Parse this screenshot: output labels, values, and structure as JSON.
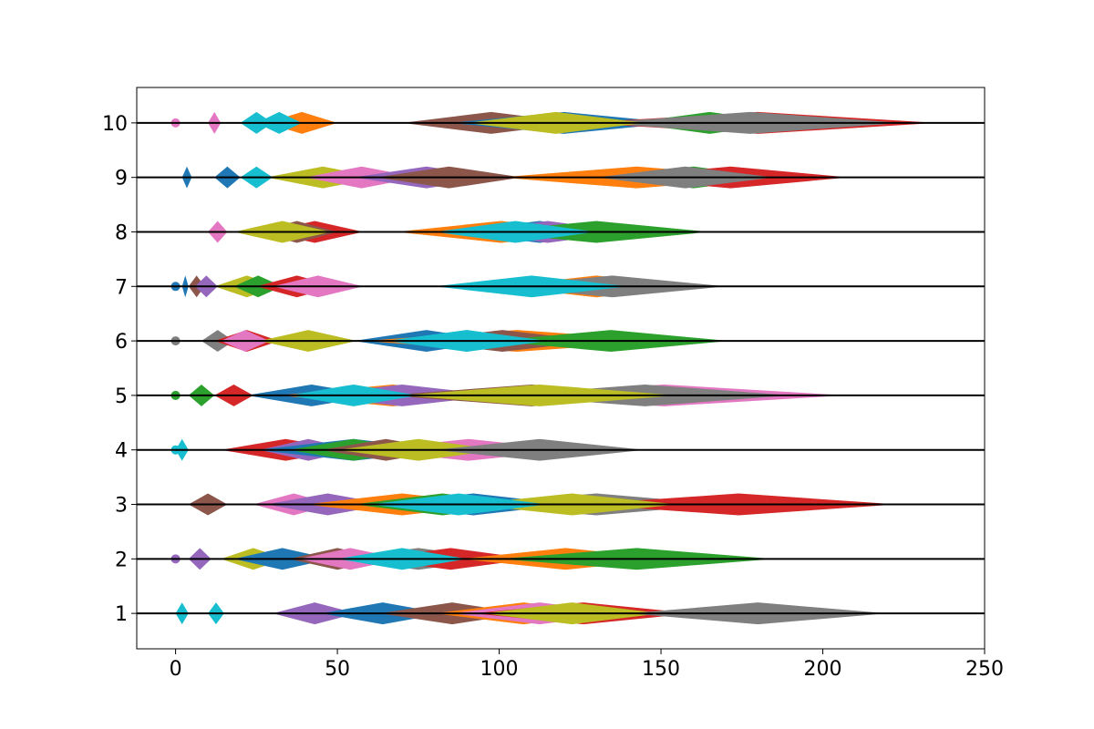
{
  "chart_data": {
    "type": "area",
    "title": "",
    "xlabel": "",
    "ylabel": "",
    "xlim": [
      -12,
      250
    ],
    "ylim": [
      0.35,
      10.65
    ],
    "x_ticks": [
      0,
      50,
      100,
      150,
      200,
      250
    ],
    "y_ticks": [
      1,
      2,
      3,
      4,
      5,
      6,
      7,
      8,
      9,
      10
    ],
    "x_tick_labels": [
      "0",
      "50",
      "100",
      "150",
      "200",
      "250"
    ],
    "y_tick_labels": [
      "1",
      "2",
      "3",
      "4",
      "5",
      "6",
      "7",
      "8",
      "9",
      "10"
    ],
    "half_height": 0.2,
    "grid": false,
    "palette": [
      "#1f77b4",
      "#ff7f0e",
      "#2ca02c",
      "#d62728",
      "#9467bd",
      "#8c564b",
      "#e377c2",
      "#7f7f7f",
      "#bcbd22",
      "#17becf"
    ],
    "series": [
      {
        "y": 1,
        "segments": [
          {
            "start": 0,
            "length": 4,
            "color": "#17becf"
          },
          {
            "start": 10,
            "length": 5,
            "color": "#17becf"
          },
          {
            "start": 30,
            "length": 26,
            "color": "#9467bd"
          },
          {
            "start": 45,
            "length": 38,
            "color": "#1f77b4"
          },
          {
            "start": 63,
            "length": 45,
            "color": "#8c564b"
          },
          {
            "start": 80,
            "length": 55,
            "color": "#ff7f0e"
          },
          {
            "start": 85,
            "length": 55,
            "color": "#e377c2"
          },
          {
            "start": 92,
            "length": 68,
            "color": "#d62728"
          },
          {
            "start": 95,
            "length": 55,
            "color": "#bcbd22"
          },
          {
            "start": 140,
            "length": 80,
            "color": "#7f7f7f"
          }
        ]
      },
      {
        "y": 2,
        "segments": [
          {
            "start": 0,
            "length": 0,
            "color": "#9467bd"
          },
          {
            "start": 4,
            "length": 7,
            "color": "#9467bd"
          },
          {
            "start": 14,
            "length": 20,
            "color": "#bcbd22"
          },
          {
            "start": 18,
            "length": 30,
            "color": "#1f77b4"
          },
          {
            "start": 35,
            "length": 30,
            "color": "#8c564b"
          },
          {
            "start": 38,
            "length": 32,
            "color": "#e377c2"
          },
          {
            "start": 50,
            "length": 50,
            "color": "#7f7f7f"
          },
          {
            "start": 60,
            "length": 50,
            "color": "#d62728"
          },
          {
            "start": 88,
            "length": 65,
            "color": "#ff7f0e"
          },
          {
            "start": 100,
            "length": 85,
            "color": "#2ca02c"
          },
          {
            "start": 50,
            "length": 40,
            "color": "#17becf"
          }
        ]
      },
      {
        "y": 3,
        "segments": [
          {
            "start": 4,
            "length": 12,
            "color": "#8c564b"
          },
          {
            "start": 24,
            "length": 25,
            "color": "#e377c2"
          },
          {
            "start": 28,
            "length": 38,
            "color": "#9467bd"
          },
          {
            "start": 40,
            "length": 60,
            "color": "#ff7f0e"
          },
          {
            "start": 55,
            "length": 55,
            "color": "#2ca02c"
          },
          {
            "start": 62,
            "length": 60,
            "color": "#1f77b4"
          },
          {
            "start": 90,
            "length": 80,
            "color": "#7f7f7f"
          },
          {
            "start": 125,
            "length": 98,
            "color": "#d62728"
          },
          {
            "start": 90,
            "length": 65,
            "color": "#bcbd22"
          },
          {
            "start": 60,
            "length": 55,
            "color": "#17becf"
          }
        ]
      },
      {
        "y": 4,
        "segments": [
          {
            "start": 0,
            "length": 0,
            "color": "#17becf"
          },
          {
            "start": 0,
            "length": 4,
            "color": "#17becf"
          },
          {
            "start": 14,
            "length": 40,
            "color": "#d62728"
          },
          {
            "start": 26,
            "length": 30,
            "color": "#9467bd"
          },
          {
            "start": 25,
            "length": 60,
            "color": "#1f77b4"
          },
          {
            "start": 35,
            "length": 40,
            "color": "#2ca02c"
          },
          {
            "start": 45,
            "length": 40,
            "color": "#8c564b"
          },
          {
            "start": 58,
            "length": 65,
            "color": "#e377c2"
          },
          {
            "start": 50,
            "length": 50,
            "color": "#bcbd22"
          },
          {
            "start": 80,
            "length": 65,
            "color": "#7f7f7f"
          }
        ]
      },
      {
        "y": 5,
        "segments": [
          {
            "start": 0,
            "length": 0,
            "color": "#2ca02c"
          },
          {
            "start": 4,
            "length": 8,
            "color": "#2ca02c"
          },
          {
            "start": 12,
            "length": 12,
            "color": "#d62728"
          },
          {
            "start": 22,
            "length": 40,
            "color": "#1f77b4"
          },
          {
            "start": 32,
            "length": 70,
            "color": "#ff7f0e"
          },
          {
            "start": 40,
            "length": 60,
            "color": "#9467bd"
          },
          {
            "start": 65,
            "length": 90,
            "color": "#8c564b"
          },
          {
            "start": 95,
            "length": 112,
            "color": "#e377c2"
          },
          {
            "start": 100,
            "length": 90,
            "color": "#7f7f7f"
          },
          {
            "start": 70,
            "length": 85,
            "color": "#bcbd22"
          },
          {
            "start": 35,
            "length": 40,
            "color": "#17becf"
          }
        ]
      },
      {
        "y": 6,
        "segments": [
          {
            "start": 0,
            "length": 0,
            "color": "#7f7f7f"
          },
          {
            "start": 8,
            "length": 10,
            "color": "#7f7f7f"
          },
          {
            "start": 12,
            "length": 20,
            "color": "#d62728"
          },
          {
            "start": 14,
            "length": 15,
            "color": "#e377c2"
          },
          {
            "start": 26,
            "length": 30,
            "color": "#bcbd22"
          },
          {
            "start": 55,
            "length": 45,
            "color": "#1f77b4"
          },
          {
            "start": 58,
            "length": 95,
            "color": "#ff7f0e"
          },
          {
            "start": 72,
            "length": 58,
            "color": "#8c564b"
          },
          {
            "start": 70,
            "length": 40,
            "color": "#9467bd"
          },
          {
            "start": 98,
            "length": 73,
            "color": "#2ca02c"
          },
          {
            "start": 65,
            "length": 50,
            "color": "#17becf"
          }
        ]
      },
      {
        "y": 7,
        "segments": [
          {
            "start": 0,
            "length": 0,
            "color": "#1f77b4"
          },
          {
            "start": 2,
            "length": 2,
            "color": "#1f77b4"
          },
          {
            "start": 4,
            "length": 5,
            "color": "#8c564b"
          },
          {
            "start": 6,
            "length": 7,
            "color": "#9467bd"
          },
          {
            "start": 12,
            "length": 20,
            "color": "#bcbd22"
          },
          {
            "start": 18,
            "length": 15,
            "color": "#2ca02c"
          },
          {
            "start": 25,
            "length": 25,
            "color": "#d62728"
          },
          {
            "start": 30,
            "length": 28,
            "color": "#e377c2"
          },
          {
            "start": 100,
            "length": 60,
            "color": "#ff7f0e"
          },
          {
            "start": 100,
            "length": 70,
            "color": "#7f7f7f"
          },
          {
            "start": 80,
            "length": 60,
            "color": "#17becf"
          }
        ]
      },
      {
        "y": 8,
        "segments": [
          {
            "start": 10,
            "length": 6,
            "color": "#e377c2"
          },
          {
            "start": 28,
            "length": 30,
            "color": "#d62728"
          },
          {
            "start": 25,
            "length": 25,
            "color": "#8c564b"
          },
          {
            "start": 18,
            "length": 30,
            "color": "#bcbd22"
          },
          {
            "start": 68,
            "length": 65,
            "color": "#ff7f0e"
          },
          {
            "start": 85,
            "length": 55,
            "color": "#1f77b4"
          },
          {
            "start": 90,
            "length": 50,
            "color": "#9467bd"
          },
          {
            "start": 95,
            "length": 70,
            "color": "#2ca02c"
          },
          {
            "start": 80,
            "length": 50,
            "color": "#17becf"
          }
        ]
      },
      {
        "y": 9,
        "segments": [
          {
            "start": 2,
            "length": 3,
            "color": "#1f77b4"
          },
          {
            "start": 12,
            "length": 8,
            "color": "#1f77b4"
          },
          {
            "start": 20,
            "length": 10,
            "color": "#17becf"
          },
          {
            "start": 28,
            "length": 35,
            "color": "#bcbd22"
          },
          {
            "start": 40,
            "length": 35,
            "color": "#e377c2"
          },
          {
            "start": 55,
            "length": 45,
            "color": "#9467bd"
          },
          {
            "start": 62,
            "length": 45,
            "color": "#8c564b"
          },
          {
            "start": 100,
            "length": 85,
            "color": "#ff7f0e"
          },
          {
            "start": 135,
            "length": 50,
            "color": "#2ca02c"
          },
          {
            "start": 135,
            "length": 73,
            "color": "#d62728"
          },
          {
            "start": 130,
            "length": 55,
            "color": "#7f7f7f"
          }
        ]
      },
      {
        "y": 10,
        "segments": [
          {
            "start": 0,
            "length": 0,
            "color": "#e377c2"
          },
          {
            "start": 10,
            "length": 4,
            "color": "#e377c2"
          },
          {
            "start": 20,
            "length": 10,
            "color": "#17becf"
          },
          {
            "start": 28,
            "length": 22,
            "color": "#ff7f0e"
          },
          {
            "start": 25,
            "length": 14,
            "color": "#17becf"
          },
          {
            "start": 70,
            "length": 55,
            "color": "#8c564b"
          },
          {
            "start": 85,
            "length": 70,
            "color": "#1f77b4"
          },
          {
            "start": 125,
            "length": 110,
            "color": "#d62728"
          },
          {
            "start": 140,
            "length": 50,
            "color": "#2ca02c"
          },
          {
            "start": 130,
            "length": 95,
            "color": "#7f7f7f"
          },
          {
            "start": 90,
            "length": 55,
            "color": "#bcbd22"
          }
        ]
      }
    ]
  }
}
